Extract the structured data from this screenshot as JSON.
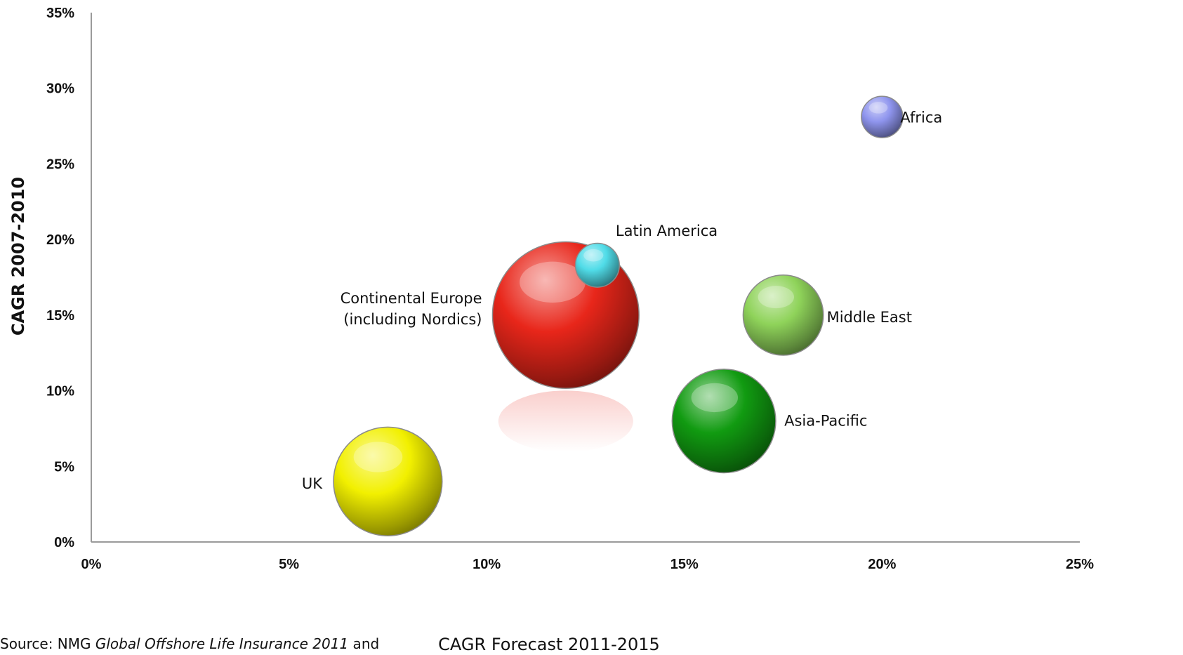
{
  "chart_data": {
    "type": "bubble",
    "title": "",
    "xlabel": "CAGR Forecast 2011-2015",
    "ylabel": "CAGR 2007-2010",
    "xlim": [
      0,
      25
    ],
    "ylim": [
      0,
      35
    ],
    "x_ticks": [
      "0%",
      "5%",
      "10%",
      "15%",
      "20%",
      "25%"
    ],
    "y_ticks": [
      "0%",
      "5%",
      "10%",
      "15%",
      "20%",
      "25%",
      "30%",
      "35%"
    ],
    "grid": false,
    "legend": "none",
    "points": [
      {
        "label": "UK",
        "x": 7.5,
        "y": 4.0,
        "size": 5.5,
        "color": "#f2f000"
      },
      {
        "label": "Continental Europe (including Nordics)",
        "label_lines": [
          "Continental Europe",
          "(including Nordics)"
        ],
        "x": 12.0,
        "y": 15.0,
        "size": 10.0,
        "color": "#e8261a"
      },
      {
        "label": "Latin America",
        "x": 12.8,
        "y": 18.3,
        "size": 0.9,
        "color": "#50dce8"
      },
      {
        "label": "Asia-Pacific",
        "x": 16.0,
        "y": 8.0,
        "size": 5.0,
        "color": "#119b11"
      },
      {
        "label": "Middle East",
        "x": 17.5,
        "y": 15.0,
        "size": 3.0,
        "color": "#8fd35a"
      },
      {
        "label": "Africa",
        "x": 20.0,
        "y": 28.1,
        "size": 0.8,
        "color": "#8f95ee"
      }
    ]
  },
  "source": {
    "prefix": "Source:  NMG ",
    "title": "Global Offshore Life Insurance 2011",
    "suffix": " and"
  }
}
